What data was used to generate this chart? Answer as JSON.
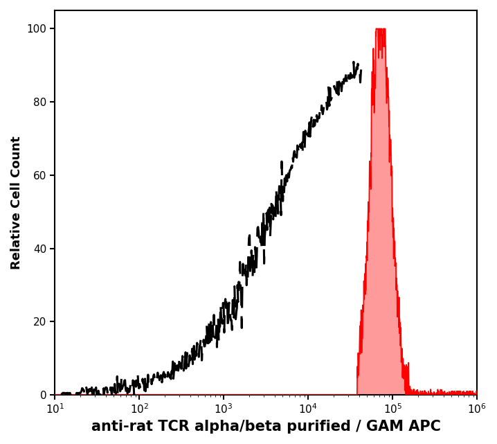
{
  "title": "",
  "xlabel": "anti-rat TCR alpha/beta purified / GAM APC",
  "ylabel": "Relative Cell Count",
  "xlim_log": [
    10,
    1000000
  ],
  "ylim": [
    0,
    105
  ],
  "yticks": [
    0,
    20,
    40,
    60,
    80,
    100
  ],
  "background_color": "#ffffff",
  "plot_bg_color": "#ffffff",
  "xlabel_fontsize": 15,
  "ylabel_fontsize": 13,
  "tick_fontsize": 11,
  "dashed_color": "#000000",
  "red_fill_color": "#ff8888",
  "red_line_color": "#ff0000",
  "dash_seed": 17,
  "red_seed": 99
}
